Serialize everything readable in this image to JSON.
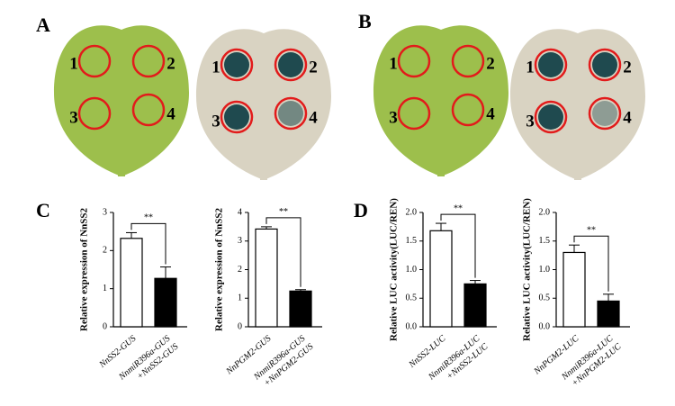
{
  "photo_panels": [
    "A",
    "B"
  ],
  "spot_labels": [
    "1",
    "2",
    "3",
    "4"
  ],
  "chart_panels": [
    "C",
    "D"
  ],
  "chart_data": [
    {
      "type": "bar",
      "ylabel": "Relative expression of NnSS2",
      "categories": [
        [
          "NnSS2-GUS"
        ],
        [
          "NnmiR396a-GUS",
          "+NnSS2-GUS"
        ]
      ],
      "values": [
        2.32,
        1.27
      ],
      "errors": [
        0.15,
        0.3
      ],
      "colors": [
        "#ffffff",
        "#000000"
      ],
      "significance": "**",
      "ylim": [
        0,
        3
      ],
      "yticks": [
        0,
        1,
        2,
        3
      ]
    },
    {
      "type": "bar",
      "ylabel": "Relative expression of NnSS2",
      "categories": [
        [
          "NnPGM2-GUS"
        ],
        [
          "NnmiR396a-GUS",
          "+NnPGM2-GUS"
        ]
      ],
      "values": [
        3.42,
        1.25
      ],
      "errors": [
        0.08,
        0.05
      ],
      "colors": [
        "#ffffff",
        "#000000"
      ],
      "significance": "**",
      "ylim": [
        0,
        4
      ],
      "yticks": [
        0,
        1,
        2,
        3,
        4
      ]
    },
    {
      "type": "bar",
      "ylabel": "Relative LUC activity(LUC/REN)",
      "categories": [
        [
          "NnSS2-LUC"
        ],
        [
          "NnmiR396a-LUC",
          "+NnSS2-LUC"
        ]
      ],
      "values": [
        1.68,
        0.75
      ],
      "errors": [
        0.13,
        0.06
      ],
      "colors": [
        "#ffffff",
        "#000000"
      ],
      "significance": "**",
      "ylim": [
        0,
        2
      ],
      "yticks": [
        {
          "value": 0,
          "label": "0.0"
        },
        0.5,
        {
          "value": 1,
          "label": "1.0"
        },
        1.5,
        {
          "value": 2,
          "label": "2.0"
        }
      ]
    },
    {
      "type": "bar",
      "ylabel": "Relative LUC activity(LUC/REN)",
      "categories": [
        [
          "NnPGM2-LUC"
        ],
        [
          "NnmiR396a-LUC",
          "+NnPGM2-LUC"
        ]
      ],
      "values": [
        1.3,
        0.45
      ],
      "errors": [
        0.13,
        0.12
      ],
      "colors": [
        "#ffffff",
        "#000000"
      ],
      "significance": "**",
      "ylim": [
        0,
        2
      ],
      "yticks": [
        {
          "value": 0,
          "label": "0.0"
        },
        0.5,
        {
          "value": 1,
          "label": "1.0"
        },
        1.5,
        {
          "value": 2,
          "label": "2.0"
        }
      ]
    }
  ]
}
